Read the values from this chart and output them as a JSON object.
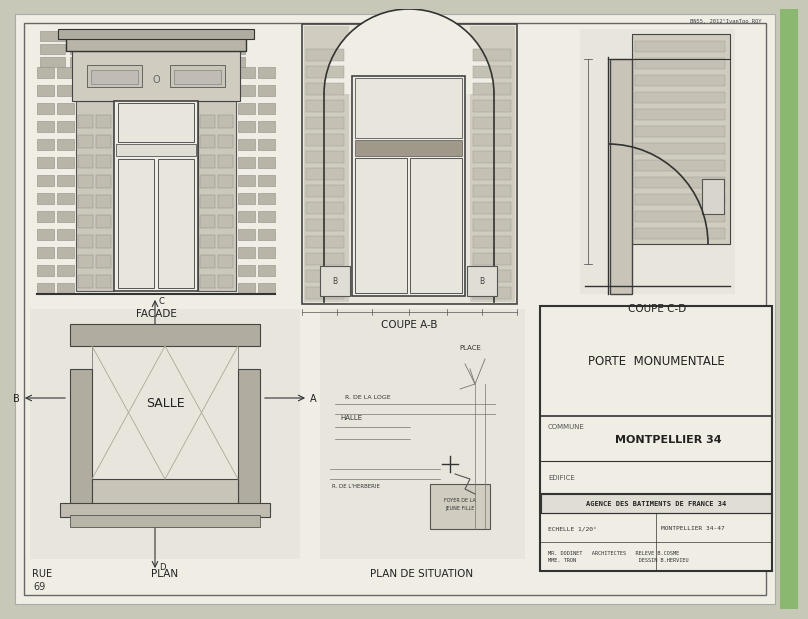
{
  "bg_outer": "#c8c8b8",
  "bg_paper": "#f0ede4",
  "bg_draw": "#e8e5dc",
  "green_strip": "#8ab870",
  "border_dark": "#333333",
  "border_mid": "#666666",
  "border_light": "#999999",
  "brick_fill": "#c8c4b6",
  "brick_edge": "#888880",
  "door_fill": "#f0ede4",
  "wall_fill": "#ccc9be",
  "header_text": "BN55, 2012°IvanToo ROY",
  "facade_label": "FACADE",
  "coupe_ab_label": "COUPE A-B",
  "coupe_cd_label": "COUPE C-D",
  "plan_label": "PLAN",
  "situation_label": "PLAN DE SITUATION",
  "rue_label": "RUE",
  "salle_label": "SALLE",
  "title_text": "PORTE  MONUMENTALE",
  "commune_label": "COMMUNE",
  "commune_value": "MONTPELLIER 34",
  "edifice_label": "EDIFICE",
  "agency_title": "AGENCE DES BATIMENTS DE FRANCE 34",
  "scale_label": "ECHELLE 1/20°",
  "city_label": "MONTPELLIER 34-47",
  "place_label": "PLACE",
  "loge_label": "R. DE LA LOGE",
  "halle_label": "HALLE",
  "herberie_label": "R. DE L'HERBERIE",
  "foyer_label1": "FOYER DE LA",
  "foyer_label2": "JEUNE FILLE",
  "page_num": "69"
}
